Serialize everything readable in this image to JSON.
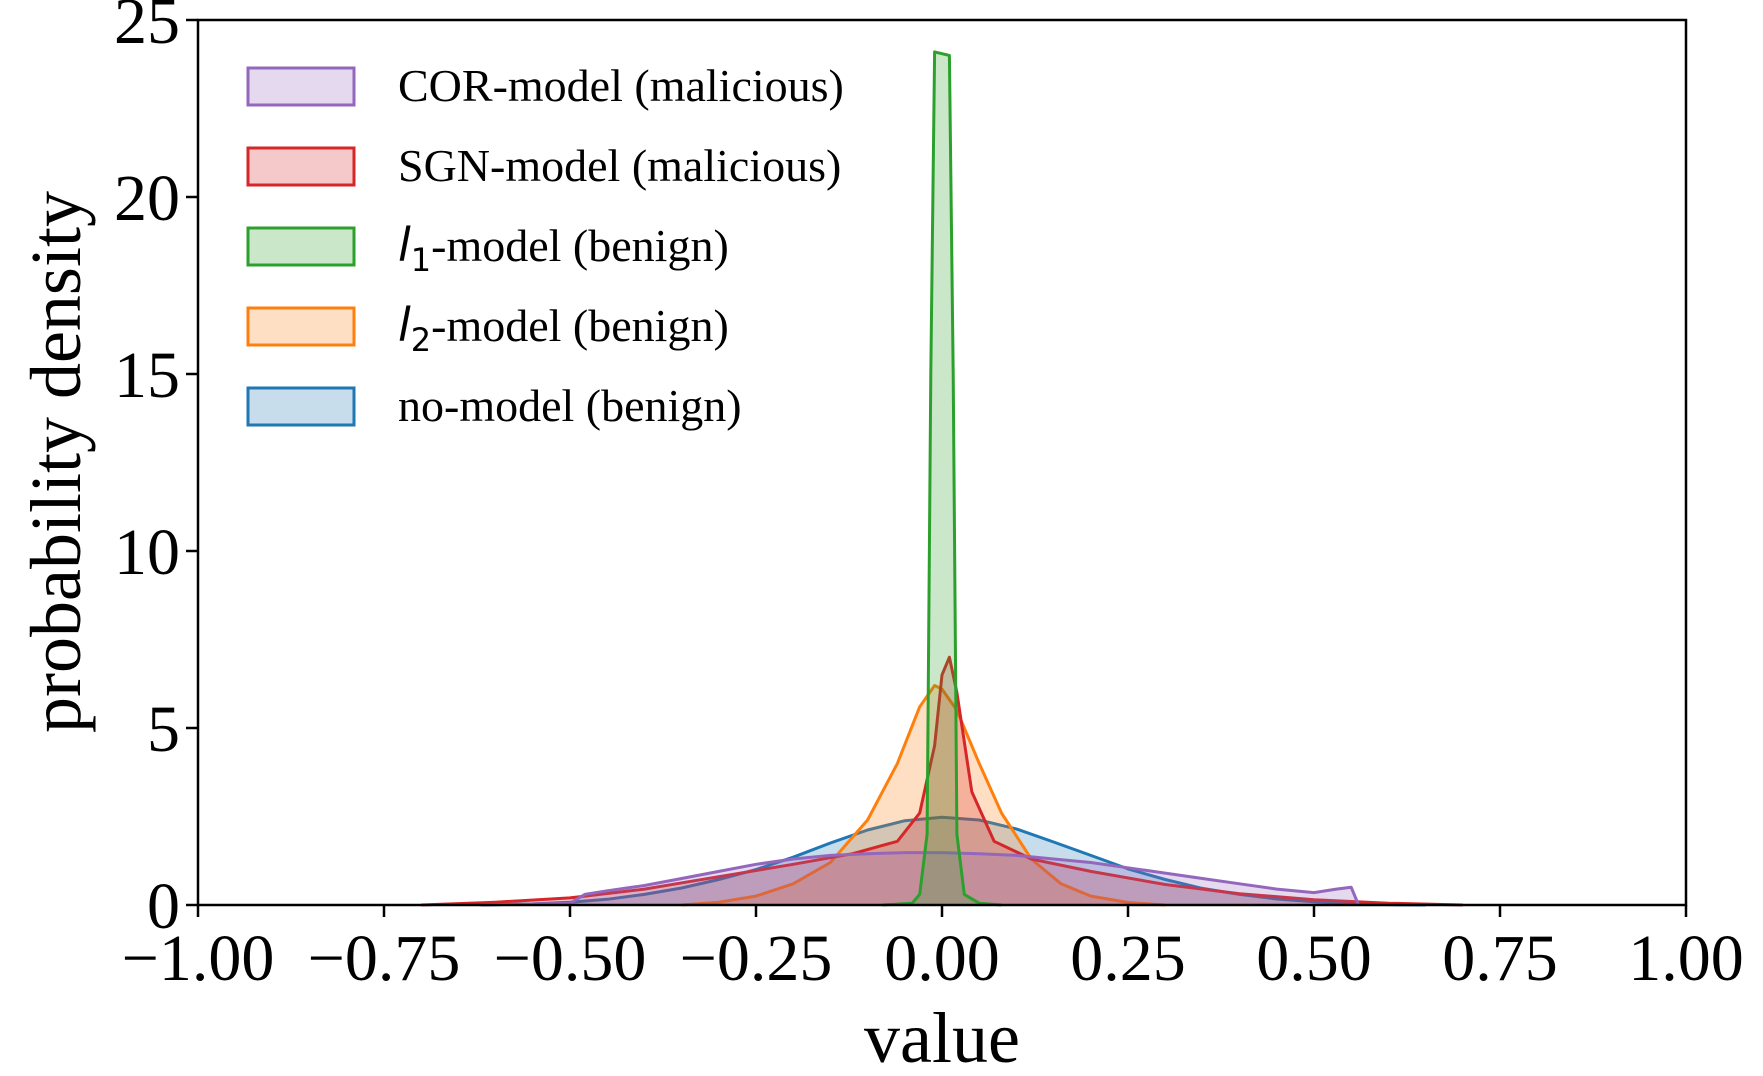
{
  "chart_data": {
    "type": "area",
    "title": "",
    "xlabel": "value",
    "ylabel": "probability density",
    "xlim": [
      -1.0,
      1.0
    ],
    "ylim": [
      0,
      25
    ],
    "x_ticks": [
      -1.0,
      -0.75,
      -0.5,
      -0.25,
      0.0,
      0.25,
      0.5,
      0.75,
      1.0
    ],
    "x_tick_labels": [
      "−1.00",
      "−0.75",
      "−0.50",
      "−0.25",
      "0.00",
      "0.25",
      "0.50",
      "0.75",
      "1.00"
    ],
    "y_ticks": [
      0,
      5,
      10,
      15,
      20,
      25
    ],
    "y_tick_labels": [
      "0",
      "5",
      "10",
      "15",
      "20",
      "25"
    ],
    "grid": false,
    "legend_position": "top-left",
    "series": [
      {
        "name": "no-model (benign)",
        "legend_label": {
          "main": "no-model (benign)"
        },
        "color": "#1f77b4",
        "x": [
          -0.62,
          -0.55,
          -0.5,
          -0.45,
          -0.4,
          -0.35,
          -0.3,
          -0.25,
          -0.2,
          -0.15,
          -0.1,
          -0.05,
          0.0,
          0.05,
          0.1,
          0.15,
          0.2,
          0.25,
          0.3,
          0.35,
          0.4,
          0.45,
          0.5,
          0.55,
          0.6,
          0.65
        ],
        "y": [
          0.0,
          0.03,
          0.08,
          0.16,
          0.3,
          0.48,
          0.72,
          1.0,
          1.35,
          1.75,
          2.12,
          2.38,
          2.48,
          2.4,
          2.15,
          1.78,
          1.4,
          1.02,
          0.72,
          0.47,
          0.3,
          0.17,
          0.09,
          0.04,
          0.01,
          0.0
        ]
      },
      {
        "name": "l2-model (benign)",
        "legend_label": {
          "prefix": "l",
          "sub": "2",
          "suffix": "-model (benign)"
        },
        "color": "#ff7f0e",
        "x": [
          -0.35,
          -0.3,
          -0.25,
          -0.2,
          -0.15,
          -0.1,
          -0.06,
          -0.03,
          -0.01,
          0.0,
          0.02,
          0.05,
          0.08,
          0.12,
          0.16,
          0.2,
          0.25,
          0.3
        ],
        "y": [
          0.0,
          0.08,
          0.25,
          0.6,
          1.2,
          2.4,
          4.0,
          5.6,
          6.2,
          6.1,
          5.5,
          4.0,
          2.6,
          1.3,
          0.6,
          0.25,
          0.07,
          0.0
        ]
      },
      {
        "name": "SGN-model (malicious)",
        "legend_label": {
          "main": "SGN-model (malicious)"
        },
        "color": "#d62728",
        "x": [
          -0.7,
          -0.6,
          -0.5,
          -0.4,
          -0.3,
          -0.2,
          -0.12,
          -0.06,
          -0.03,
          -0.01,
          0.0,
          0.01,
          0.02,
          0.04,
          0.07,
          0.12,
          0.2,
          0.3,
          0.4,
          0.5,
          0.6,
          0.7
        ],
        "y": [
          0.0,
          0.08,
          0.2,
          0.45,
          0.8,
          1.15,
          1.45,
          1.8,
          2.6,
          4.5,
          6.5,
          7.0,
          6.0,
          3.2,
          1.8,
          1.3,
          0.95,
          0.58,
          0.32,
          0.15,
          0.05,
          0.0
        ]
      },
      {
        "name": "COR-model (malicious)",
        "legend_label": {
          "main": "COR-model (malicious)"
        },
        "color": "#9467bd",
        "x": [
          -0.62,
          -0.5,
          -0.48,
          -0.45,
          -0.4,
          -0.35,
          -0.3,
          -0.25,
          -0.2,
          -0.15,
          -0.1,
          -0.05,
          0.0,
          0.05,
          0.1,
          0.15,
          0.2,
          0.25,
          0.3,
          0.35,
          0.4,
          0.45,
          0.5,
          0.53,
          0.55,
          0.56
        ],
        "y": [
          0.0,
          0.05,
          0.3,
          0.4,
          0.55,
          0.75,
          0.95,
          1.15,
          1.3,
          1.4,
          1.45,
          1.48,
          1.48,
          1.45,
          1.4,
          1.3,
          1.2,
          1.05,
          0.9,
          0.75,
          0.6,
          0.45,
          0.35,
          0.45,
          0.5,
          0.0
        ]
      },
      {
        "name": "l1-model (benign)",
        "legend_label": {
          "prefix": "l",
          "sub": "1",
          "suffix": "-model (benign)"
        },
        "color": "#2ca02c",
        "x": [
          -0.08,
          -0.04,
          -0.03,
          -0.02,
          -0.015,
          -0.01,
          0.01,
          0.015,
          0.02,
          0.03,
          0.05,
          0.08
        ],
        "y": [
          0.0,
          0.05,
          0.3,
          2.0,
          15.0,
          24.1,
          24.0,
          15.0,
          2.0,
          0.3,
          0.05,
          0.0
        ]
      }
    ],
    "legend_order": [
      "COR-model (malicious)",
      "SGN-model (malicious)",
      "l1-model (benign)",
      "l2-model (benign)",
      "no-model (benign)"
    ]
  }
}
